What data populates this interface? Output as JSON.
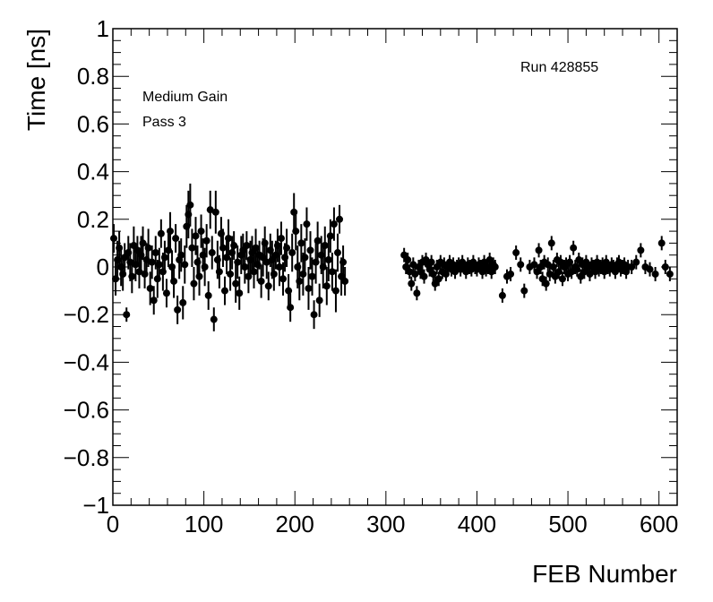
{
  "chart_data": {
    "type": "scatter",
    "xlabel": "FEB Number",
    "ylabel": "Time [ns]",
    "xlim": [
      0,
      620
    ],
    "ylim": [
      -1,
      1
    ],
    "x_ticks": [
      "0",
      "100",
      "200",
      "300",
      "400",
      "500",
      "600"
    ],
    "y_ticks": [
      "−1",
      "−0.8",
      "−0.6",
      "−0.4",
      "−0.2",
      "0",
      "0.2",
      "0.4",
      "0.6",
      "0.8",
      "1"
    ],
    "annotations": {
      "gain": "Medium Gain",
      "pass": "Pass 3",
      "run": "Run 428855"
    },
    "grid": false,
    "legend": "none",
    "marker_color": "#000000",
    "points": [
      [
        1,
        0.12,
        0.06
      ],
      [
        3,
        -0.05,
        0.07
      ],
      [
        5,
        0.03,
        0.08
      ],
      [
        7,
        0.08,
        0.07
      ],
      [
        9,
        0.0,
        0.08
      ],
      [
        11,
        -0.03,
        0.07
      ],
      [
        13,
        0.04,
        0.06
      ],
      [
        15,
        -0.2,
        0.03
      ],
      [
        17,
        0.06,
        0.07
      ],
      [
        19,
        0.02,
        0.08
      ],
      [
        21,
        -0.04,
        0.07
      ],
      [
        23,
        0.09,
        0.08
      ],
      [
        25,
        0.01,
        0.07
      ],
      [
        27,
        0.07,
        0.06
      ],
      [
        29,
        -0.02,
        0.07
      ],
      [
        31,
        0.05,
        0.08
      ],
      [
        33,
        0.1,
        0.07
      ],
      [
        35,
        -0.03,
        0.06
      ],
      [
        37,
        0.03,
        0.07
      ],
      [
        39,
        0.08,
        0.08
      ],
      [
        41,
        -0.09,
        0.07
      ],
      [
        43,
        0.02,
        0.07
      ],
      [
        45,
        -0.14,
        0.06
      ],
      [
        47,
        0.06,
        0.07
      ],
      [
        49,
        -0.05,
        0.08
      ],
      [
        51,
        0.01,
        0.07
      ],
      [
        53,
        0.14,
        0.06
      ],
      [
        55,
        -0.02,
        0.08
      ],
      [
        57,
        0.04,
        0.07
      ],
      [
        59,
        -0.11,
        0.06
      ],
      [
        61,
        0.07,
        0.07
      ],
      [
        63,
        0.15,
        0.08
      ],
      [
        65,
        0.0,
        0.07
      ],
      [
        67,
        -0.06,
        0.07
      ],
      [
        69,
        0.12,
        0.06
      ],
      [
        71,
        -0.18,
        0.06
      ],
      [
        73,
        0.03,
        0.08
      ],
      [
        75,
        0.05,
        0.07
      ],
      [
        77,
        -0.15,
        0.07
      ],
      [
        79,
        0.01,
        0.08
      ],
      [
        81,
        0.17,
        0.09
      ],
      [
        83,
        0.22,
        0.1
      ],
      [
        85,
        0.26,
        0.09
      ],
      [
        87,
        0.08,
        0.08
      ],
      [
        89,
        -0.07,
        0.07
      ],
      [
        91,
        0.13,
        0.08
      ],
      [
        93,
        0.02,
        0.07
      ],
      [
        95,
        -0.04,
        0.08
      ],
      [
        97,
        0.15,
        0.07
      ],
      [
        99,
        0.05,
        0.07
      ],
      [
        101,
        0.0,
        0.08
      ],
      [
        103,
        0.11,
        0.07
      ],
      [
        105,
        -0.12,
        0.06
      ],
      [
        107,
        0.24,
        0.08
      ],
      [
        109,
        0.06,
        0.07
      ],
      [
        111,
        -0.22,
        0.05
      ],
      [
        113,
        0.23,
        0.09
      ],
      [
        115,
        0.03,
        0.08
      ],
      [
        117,
        -0.02,
        0.07
      ],
      [
        119,
        0.14,
        0.07
      ],
      [
        121,
        0.08,
        0.08
      ],
      [
        123,
        -0.1,
        0.06
      ],
      [
        125,
        0.04,
        0.07
      ],
      [
        127,
        0.12,
        0.08
      ],
      [
        129,
        -0.03,
        0.07
      ],
      [
        131,
        0.06,
        0.07
      ],
      [
        133,
        0.09,
        0.06
      ],
      [
        135,
        -0.07,
        0.08
      ],
      [
        137,
        0.02,
        0.07
      ],
      [
        139,
        -0.11,
        0.07
      ],
      [
        141,
        0.05,
        0.08
      ],
      [
        143,
        0.07,
        0.07
      ],
      [
        145,
        0.0,
        0.07
      ],
      [
        147,
        0.09,
        0.06
      ],
      [
        149,
        -0.04,
        0.07
      ],
      [
        151,
        0.03,
        0.08
      ],
      [
        153,
        0.06,
        0.07
      ],
      [
        155,
        -0.02,
        0.07
      ],
      [
        157,
        0.08,
        0.08
      ],
      [
        159,
        0.01,
        0.07
      ],
      [
        161,
        0.05,
        0.06
      ],
      [
        163,
        -0.06,
        0.07
      ],
      [
        165,
        0.04,
        0.08
      ],
      [
        167,
        0.1,
        0.07
      ],
      [
        169,
        0.02,
        0.07
      ],
      [
        171,
        -0.08,
        0.06
      ],
      [
        173,
        0.07,
        0.07
      ],
      [
        175,
        0.03,
        0.08
      ],
      [
        177,
        -0.03,
        0.07
      ],
      [
        179,
        0.05,
        0.06
      ],
      [
        181,
        0.09,
        0.07
      ],
      [
        183,
        0.0,
        0.08
      ],
      [
        185,
        0.12,
        0.07
      ],
      [
        187,
        -0.05,
        0.07
      ],
      [
        189,
        0.04,
        0.06
      ],
      [
        191,
        0.08,
        0.08
      ],
      [
        193,
        -0.1,
        0.07
      ],
      [
        195,
        -0.17,
        0.06
      ],
      [
        197,
        0.06,
        0.08
      ],
      [
        199,
        0.23,
        0.08
      ],
      [
        201,
        0.15,
        0.08
      ],
      [
        203,
        0.0,
        0.09
      ],
      [
        205,
        -0.06,
        0.08
      ],
      [
        207,
        0.1,
        0.08
      ],
      [
        209,
        -0.03,
        0.09
      ],
      [
        211,
        0.04,
        0.08
      ],
      [
        213,
        0.18,
        0.07
      ],
      [
        215,
        -0.09,
        0.09
      ],
      [
        217,
        0.07,
        0.08
      ],
      [
        219,
        -0.04,
        0.08
      ],
      [
        221,
        -0.2,
        0.06
      ],
      [
        223,
        0.02,
        0.09
      ],
      [
        225,
        0.11,
        0.08
      ],
      [
        227,
        -0.14,
        0.07
      ],
      [
        229,
        0.05,
        0.08
      ],
      [
        231,
        0.0,
        0.09
      ],
      [
        233,
        0.09,
        0.08
      ],
      [
        235,
        -0.08,
        0.08
      ],
      [
        237,
        0.03,
        0.09
      ],
      [
        239,
        0.13,
        0.07
      ],
      [
        241,
        -0.02,
        0.08
      ],
      [
        243,
        0.18,
        0.07
      ],
      [
        245,
        -0.1,
        0.09
      ],
      [
        247,
        0.06,
        0.08
      ],
      [
        249,
        0.2,
        0.06
      ],
      [
        251,
        -0.04,
        0.08
      ],
      [
        253,
        0.02,
        0.07
      ],
      [
        255,
        -0.06,
        0.06
      ],
      [
        320,
        0.05,
        0.03
      ],
      [
        322,
        0.0,
        0.03
      ],
      [
        324,
        0.03,
        0.03
      ],
      [
        326,
        -0.02,
        0.03
      ],
      [
        328,
        -0.07,
        0.03
      ],
      [
        330,
        0.01,
        0.03
      ],
      [
        332,
        -0.03,
        0.03
      ],
      [
        334,
        -0.11,
        0.03
      ],
      [
        336,
        0.0,
        0.03
      ],
      [
        338,
        -0.02,
        0.03
      ],
      [
        340,
        0.02,
        0.03
      ],
      [
        342,
        -0.04,
        0.03
      ],
      [
        344,
        0.03,
        0.03
      ],
      [
        346,
        0.01,
        0.03
      ],
      [
        348,
        -0.01,
        0.03
      ],
      [
        350,
        0.02,
        0.03
      ],
      [
        352,
        -0.03,
        0.03
      ],
      [
        354,
        -0.07,
        0.03
      ],
      [
        356,
        0.0,
        0.03
      ],
      [
        358,
        -0.05,
        0.03
      ],
      [
        360,
        0.02,
        0.03
      ],
      [
        362,
        -0.02,
        0.03
      ],
      [
        364,
        0.01,
        0.03
      ],
      [
        366,
        -0.03,
        0.03
      ],
      [
        368,
        0.0,
        0.03
      ],
      [
        370,
        0.02,
        0.03
      ],
      [
        372,
        -0.01,
        0.03
      ],
      [
        374,
        0.01,
        0.03
      ],
      [
        376,
        -0.02,
        0.03
      ],
      [
        378,
        0.0,
        0.03
      ],
      [
        380,
        0.01,
        0.03
      ],
      [
        382,
        -0.01,
        0.03
      ],
      [
        384,
        0.02,
        0.03
      ],
      [
        386,
        0.0,
        0.03
      ],
      [
        388,
        -0.02,
        0.03
      ],
      [
        390,
        0.01,
        0.03
      ],
      [
        392,
        0.0,
        0.03
      ],
      [
        394,
        -0.01,
        0.03
      ],
      [
        396,
        0.02,
        0.03
      ],
      [
        398,
        0.0,
        0.03
      ],
      [
        400,
        -0.01,
        0.03
      ],
      [
        402,
        0.01,
        0.03
      ],
      [
        404,
        0.0,
        0.03
      ],
      [
        406,
        -0.02,
        0.03
      ],
      [
        408,
        0.02,
        0.03
      ],
      [
        410,
        -0.01,
        0.03
      ],
      [
        412,
        0.0,
        0.03
      ],
      [
        414,
        0.03,
        0.03
      ],
      [
        416,
        -0.02,
        0.03
      ],
      [
        418,
        0.01,
        0.03
      ],
      [
        420,
        0.0,
        0.03
      ],
      [
        428,
        -0.12,
        0.03
      ],
      [
        433,
        -0.04,
        0.03
      ],
      [
        437,
        -0.03,
        0.03
      ],
      [
        443,
        0.06,
        0.03
      ],
      [
        448,
        0.01,
        0.03
      ],
      [
        452,
        -0.1,
        0.03
      ],
      [
        458,
        0.0,
        0.03
      ],
      [
        463,
        0.01,
        0.03
      ],
      [
        466,
        -0.02,
        0.03
      ],
      [
        468,
        0.07,
        0.03
      ],
      [
        470,
        0.0,
        0.03
      ],
      [
        472,
        -0.05,
        0.03
      ],
      [
        474,
        0.02,
        0.03
      ],
      [
        476,
        -0.07,
        0.03
      ],
      [
        478,
        0.01,
        0.03
      ],
      [
        480,
        -0.03,
        0.03
      ],
      [
        482,
        0.1,
        0.03
      ],
      [
        484,
        0.0,
        0.03
      ],
      [
        486,
        -0.04,
        0.03
      ],
      [
        488,
        0.03,
        0.03
      ],
      [
        490,
        -0.02,
        0.03
      ],
      [
        492,
        0.02,
        0.03
      ],
      [
        494,
        -0.05,
        0.03
      ],
      [
        496,
        0.0,
        0.03
      ],
      [
        498,
        0.01,
        0.03
      ],
      [
        500,
        -0.03,
        0.03
      ],
      [
        502,
        0.02,
        0.03
      ],
      [
        504,
        -0.02,
        0.03
      ],
      [
        506,
        0.08,
        0.03
      ],
      [
        508,
        0.0,
        0.03
      ],
      [
        510,
        -0.01,
        0.03
      ],
      [
        512,
        0.03,
        0.03
      ],
      [
        514,
        -0.04,
        0.03
      ],
      [
        516,
        0.01,
        0.03
      ],
      [
        518,
        -0.02,
        0.03
      ],
      [
        520,
        0.02,
        0.03
      ],
      [
        522,
        0.0,
        0.03
      ],
      [
        524,
        -0.03,
        0.03
      ],
      [
        526,
        0.01,
        0.03
      ],
      [
        528,
        0.0,
        0.03
      ],
      [
        530,
        -0.02,
        0.03
      ],
      [
        532,
        0.02,
        0.03
      ],
      [
        534,
        -0.01,
        0.03
      ],
      [
        536,
        0.0,
        0.03
      ],
      [
        538,
        0.01,
        0.03
      ],
      [
        540,
        -0.02,
        0.03
      ],
      [
        542,
        0.02,
        0.03
      ],
      [
        544,
        0.0,
        0.03
      ],
      [
        546,
        -0.01,
        0.03
      ],
      [
        548,
        0.01,
        0.03
      ],
      [
        550,
        0.0,
        0.03
      ],
      [
        552,
        -0.02,
        0.03
      ],
      [
        554,
        0.01,
        0.03
      ],
      [
        556,
        0.02,
        0.03
      ],
      [
        558,
        -0.01,
        0.03
      ],
      [
        560,
        0.0,
        0.03
      ],
      [
        562,
        0.01,
        0.03
      ],
      [
        564,
        -0.02,
        0.03
      ],
      [
        566,
        0.0,
        0.03
      ],
      [
        570,
        0.0,
        0.03
      ],
      [
        575,
        0.02,
        0.03
      ],
      [
        580,
        0.07,
        0.03
      ],
      [
        585,
        0.0,
        0.03
      ],
      [
        590,
        -0.01,
        0.03
      ],
      [
        596,
        -0.03,
        0.03
      ],
      [
        603,
        0.1,
        0.03
      ],
      [
        607,
        0.0,
        0.03
      ],
      [
        612,
        -0.03,
        0.03
      ]
    ]
  }
}
